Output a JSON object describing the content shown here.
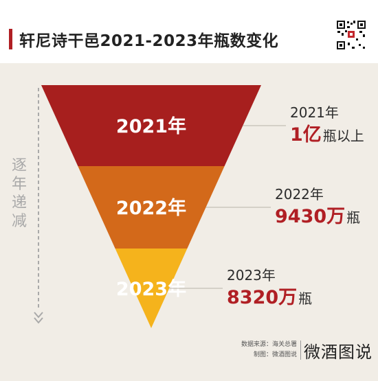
{
  "header": {
    "title": "轩尼诗干邑2021-2023年瓶数变化"
  },
  "side_label": [
    "逐",
    "年",
    "递",
    "减"
  ],
  "chart_data": {
    "type": "funnel",
    "title": "轩尼诗干邑2021-2023年瓶数变化",
    "categories": [
      "2021年",
      "2022年",
      "2023年"
    ],
    "values": [
      10000,
      9430,
      8320
    ],
    "unit": "万瓶",
    "colors": [
      "#a71f1e",
      "#d3691a",
      "#f5b31c"
    ],
    "annotations": [
      {
        "year": "2021年",
        "value": "1亿",
        "unit": "瓶以上"
      },
      {
        "year": "2022年",
        "value": "9430万",
        "unit": "瓶"
      },
      {
        "year": "2023年",
        "value": "8320万",
        "unit": "瓶"
      }
    ]
  },
  "footer": {
    "source": "数据来源：海关总署",
    "maker": "制图：微酒图说",
    "brand": "微酒图说"
  },
  "colors": {
    "accent": "#b01f24",
    "background": "#f1ede6"
  }
}
